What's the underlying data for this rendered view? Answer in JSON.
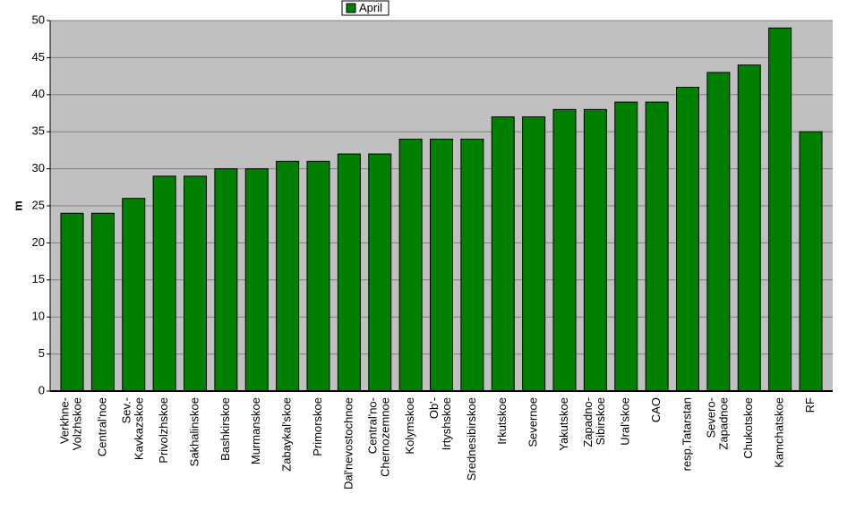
{
  "chart_data": {
    "type": "bar",
    "y_label": "m",
    "categories": [
      "Verkhne-\nVolzhskoe",
      "Central'noe",
      "Sev.-\nKavkazskoe",
      "Privolzhskoe",
      "Sakhalinskoe",
      "Bashkirskoe",
      "Murmanskoe",
      "Zabaykal'skoe",
      "Primorskoe",
      "Dal'nevostochnoe",
      "Central'no-\nChernozemnoe",
      "Kolymskoe",
      "Ob'-\nIrtyshskoe",
      "Srednesibirskoe",
      "Irkutskoe",
      "Severnoe",
      "Yakutskoe",
      "Zapadno-\nSibirskoe",
      "Ural'skoe",
      "CAO",
      "resp.Tatarstan",
      "Severo-\nZapadnoe",
      "Chukotskoe",
      "Kamchatskoe",
      "RF"
    ],
    "series": [
      {
        "name": "April",
        "color": "#008000",
        "values": [
          24,
          24,
          26,
          29,
          29,
          30,
          30,
          31,
          31,
          32,
          32,
          34,
          34,
          34,
          37,
          37,
          38,
          38,
          39,
          39,
          41,
          43,
          44,
          49,
          35
        ]
      }
    ],
    "ylim": [
      0,
      50
    ],
    "yticks": [
      0,
      5,
      10,
      15,
      20,
      25,
      30,
      35,
      40,
      45,
      50
    ],
    "grid": true,
    "legend": "top"
  }
}
